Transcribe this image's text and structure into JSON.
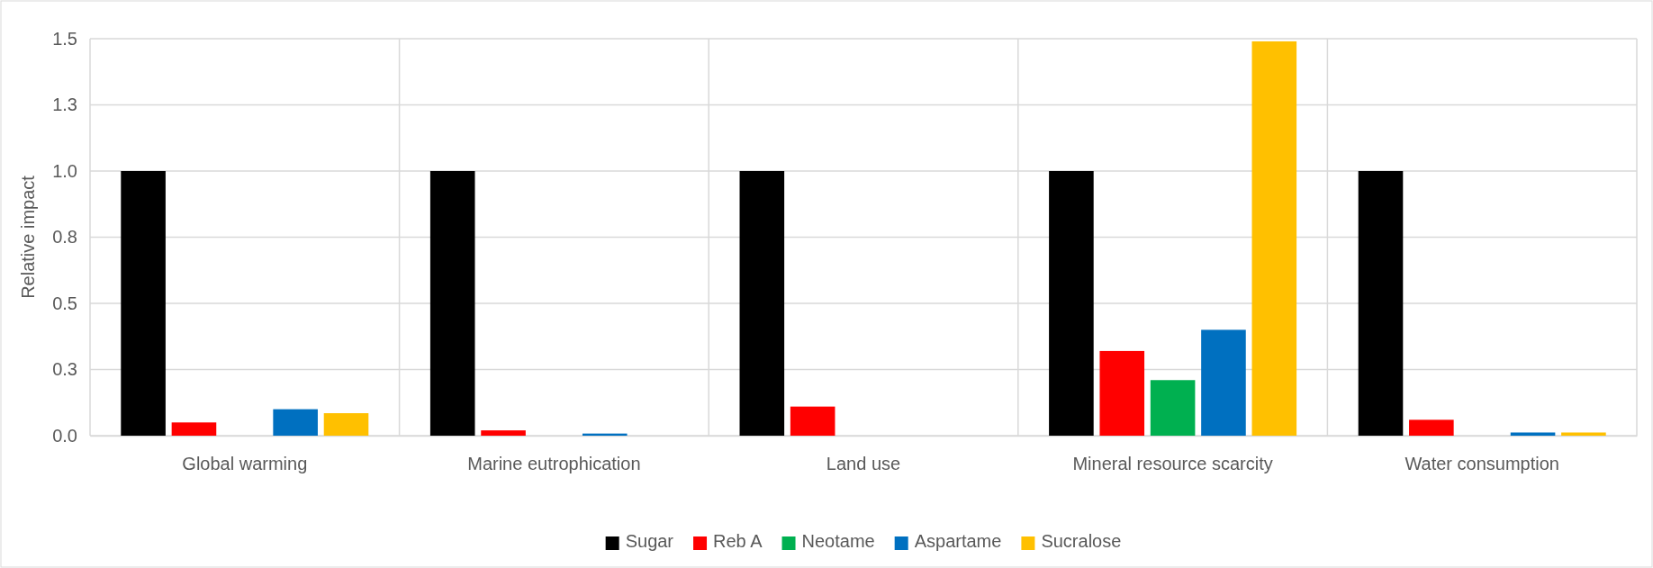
{
  "chart_data": {
    "type": "bar",
    "ylabel": "Relative impact",
    "categories": [
      "Global warming",
      "Marine eutrophication",
      "Land use",
      "Mineral resource scarcity",
      "Water consumption"
    ],
    "series": [
      {
        "name": "Sugar",
        "color": "#000000",
        "values": [
          1,
          1,
          1,
          1,
          1
        ]
      },
      {
        "name": "Reb A",
        "color": "#ff0000",
        "values": [
          0.05,
          0.02,
          0.11,
          0.32,
          0.06
        ]
      },
      {
        "name": "Neotame",
        "color": "#00b050",
        "values": [
          0,
          0,
          0,
          0.21,
          0
        ]
      },
      {
        "name": "Aspartame",
        "color": "#0070c0",
        "values": [
          0.1,
          0.008,
          0,
          0.4,
          0.012
        ]
      },
      {
        "name": "Sucralose",
        "color": "#ffc000",
        "values": [
          0.085,
          0,
          0,
          1.49,
          0.012
        ]
      }
    ],
    "ylim": [
      0,
      1.5
    ],
    "yticks": [
      {
        "value": 0,
        "label": "0.0"
      },
      {
        "value": 0.25,
        "label": "0.3"
      },
      {
        "value": 0.5,
        "label": "0.5"
      },
      {
        "value": 0.75,
        "label": "0.8"
      },
      {
        "value": 1,
        "label": "1.0"
      },
      {
        "value": 1.25,
        "label": "1.3"
      },
      {
        "value": 1.5,
        "label": "1.5"
      }
    ],
    "grid": true,
    "legend": "bottom"
  }
}
